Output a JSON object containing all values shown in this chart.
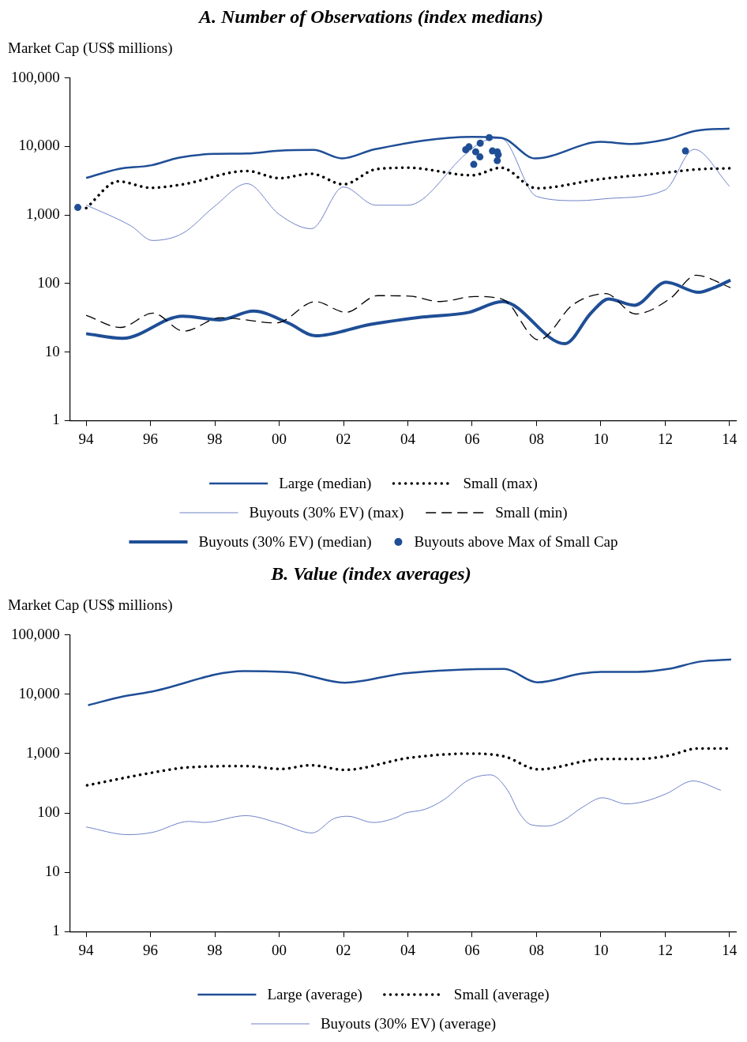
{
  "chart_data": [
    {
      "type": "line",
      "title": "A. Number of Observations (index medians)",
      "ylabel": "Market Cap (US$ millions)",
      "log": "y",
      "grid": false,
      "legend": "bottom",
      "xlim": [
        1993.5,
        2014.2
      ],
      "xticks": [
        {
          "value": 1994,
          "label": "94"
        },
        {
          "value": 1996,
          "label": "96"
        },
        {
          "value": 1998,
          "label": "98"
        },
        {
          "value": 2000,
          "label": "00"
        },
        {
          "value": 2002,
          "label": "02"
        },
        {
          "value": 2004,
          "label": "04"
        },
        {
          "value": 2006,
          "label": "06"
        },
        {
          "value": 2008,
          "label": "08"
        },
        {
          "value": 2010,
          "label": "10"
        },
        {
          "value": 2012,
          "label": "12"
        },
        {
          "value": 2014,
          "label": "14"
        }
      ],
      "ylim": [
        1,
        100000
      ],
      "yticks": [
        1,
        10,
        100,
        {
          "value": 1000,
          "label": "1,000"
        },
        {
          "value": 10000,
          "label": "10,000"
        },
        {
          "value": 100000,
          "label": "100,000"
        }
      ],
      "series": [
        {
          "name": "Large (median)",
          "color": "#1f4e96",
          "line_style": "solid",
          "x": [
            1994,
            1995,
            1996,
            1996.9,
            1998,
            1999,
            2000,
            2001.07,
            2001.95,
            2002.96,
            2006,
            2006.9,
            2007.96,
            2010,
            2010.96,
            2012,
            2012.97,
            2014
          ],
          "values": [
            3470,
            4700,
            5300,
            6900,
            7800,
            7900,
            8700,
            8900,
            6700,
            9100,
            13800,
            13400,
            6700,
            11700,
            10900,
            12600,
            17000,
            18300
          ]
        },
        {
          "name": "Small (max)",
          "color": "#000000",
          "line_style": "dotted",
          "x": [
            1994,
            1995,
            1996,
            1997,
            1999,
            2000,
            2001,
            2002,
            2003,
            2004,
            2006,
            2006.9,
            2008,
            2010,
            2012,
            2013,
            2014
          ],
          "values": [
            1260,
            3100,
            2500,
            2800,
            4400,
            3450,
            4000,
            2800,
            4650,
            4900,
            3800,
            4900,
            2460,
            3350,
            4150,
            4650,
            4800
          ]
        },
        {
          "name": "Buyouts (30% EV) (max)",
          "color": "#6f82c8",
          "line_style": "solid",
          "x": [
            1994,
            1995.4,
            1996.06,
            1997,
            1998,
            1999,
            2000,
            2001,
            2002,
            2003,
            2004,
            2005.8,
            2006.3,
            2006.9,
            2008,
            2009.3,
            2010.3,
            2012,
            2012.9,
            2014
          ],
          "values": [
            1400,
            690,
            425,
            540,
            1350,
            2870,
            1020,
            630,
            2570,
            1390,
            1390,
            7760,
            11700,
            13100,
            1870,
            1620,
            1750,
            2330,
            9100,
            2630
          ]
        },
        {
          "name": "Small (min)",
          "color": "#000000",
          "line_style": "dashed",
          "x": [
            1994,
            1995.07,
            1996.08,
            1997.04,
            1998.18,
            1999.92,
            2001.12,
            2002.08,
            2003.06,
            2004.06,
            2005,
            2006.07,
            2006.96,
            2008.07,
            2009.14,
            2010.15,
            2011.08,
            2012.15,
            2012.96,
            2014.03
          ],
          "values": [
            34.3,
            22.8,
            36.8,
            20.1,
            31.6,
            26.6,
            54.4,
            37.9,
            66.4,
            65.3,
            54.4,
            64.6,
            58.5,
            15,
            49.3,
            71.1,
            35.8,
            60,
            132,
            87
          ]
        },
        {
          "name": "Buyouts (30% EV) (median)",
          "color": "#1f4e96",
          "line_style": "solid",
          "x": [
            1994,
            1995.13,
            1997,
            1998.15,
            1999.2,
            2000.27,
            2001.13,
            2002.82,
            2004.46,
            2005.9,
            2006.94,
            2008.88,
            2009.7,
            2010.24,
            2011.04,
            2012.03,
            2013.05,
            2013.49,
            2014.03
          ],
          "values": [
            18.5,
            15.8,
            33.3,
            29.4,
            39.5,
            26.6,
            17.2,
            25.2,
            32.4,
            37.9,
            54.4,
            13.2,
            37.3,
            59.3,
            48,
            104,
            74.2,
            85.6,
            112
          ]
        },
        {
          "name": "Buyouts above Max of Small Cap",
          "type": "scatter",
          "marker": "circle",
          "color": "#1f4e96",
          "x": [
            1993.74,
            2005.8,
            2005.9,
            2006.11,
            2006.25,
            2006.24,
            2006.05,
            2006.53,
            2006.63,
            2006.78,
            2006.81,
            2006.78,
            2012.63
          ],
          "values": [
            1290,
            8980,
            9900,
            8380,
            11200,
            7060,
            5480,
            13500,
            8610,
            8380,
            7590,
            6220,
            8610
          ]
        }
      ]
    },
    {
      "type": "line",
      "title": "B. Value (index averages)",
      "ylabel": "Market Cap (US$ millions)",
      "log": "y",
      "grid": false,
      "legend": "bottom",
      "xlim": [
        1993.5,
        2014.2
      ],
      "xticks": [
        {
          "value": 1994,
          "label": "94"
        },
        {
          "value": 1996,
          "label": "96"
        },
        {
          "value": 1998,
          "label": "98"
        },
        {
          "value": 2000,
          "label": "00"
        },
        {
          "value": 2002,
          "label": "02"
        },
        {
          "value": 2004,
          "label": "04"
        },
        {
          "value": 2006,
          "label": "06"
        },
        {
          "value": 2008,
          "label": "08"
        },
        {
          "value": 2010,
          "label": "10"
        },
        {
          "value": 2012,
          "label": "12"
        },
        {
          "value": 2014,
          "label": "14"
        }
      ],
      "ylim": [
        1,
        100000
      ],
      "yticks": [
        1,
        10,
        100,
        {
          "value": 1000,
          "label": "1,000"
        },
        {
          "value": 10000,
          "label": "10,000"
        },
        {
          "value": 100000,
          "label": "100,000"
        }
      ],
      "series": [
        {
          "name": "Large (average)",
          "color": "#1f4e96",
          "line_style": "solid",
          "x": [
            1994.06,
            1995.13,
            1996,
            1998.91,
            2000.4,
            2002.03,
            2003.86,
            2007,
            2008.03,
            2009.41,
            2010.01,
            2011.15,
            2012.09,
            2013.09,
            2014.05
          ],
          "values": [
            6550,
            9180,
            11000,
            24700,
            23400,
            15700,
            22400,
            26700,
            15900,
            22400,
            23900,
            23900,
            26700,
            35700,
            38700
          ]
        },
        {
          "name": "Small (average)",
          "color": "#000000",
          "line_style": "dotted",
          "x": [
            1994.03,
            1996.04,
            1997.17,
            1998.98,
            2000.05,
            2000.98,
            2002.03,
            2004.06,
            2005.93,
            2007,
            2008.05,
            2010.08,
            2011.15,
            2012.09,
            2013.02,
            2014.05
          ],
          "values": [
            292,
            476,
            587,
            616,
            550,
            637,
            533,
            851,
            1000,
            895,
            543,
            813,
            813,
            922,
            1220,
            1220
          ]
        },
        {
          "name": "Buyouts (30% EV) (average)",
          "color": "#6f82c8",
          "line_style": "solid",
          "x": [
            1994,
            1995.3,
            1996.06,
            1997.2,
            1997.66,
            1998.96,
            2000,
            2001.02,
            2001.7,
            2002.12,
            2002.93,
            2003.62,
            2003.91,
            2004.53,
            2005.14,
            2005.88,
            2006.57,
            2007.1,
            2007.47,
            2007.84,
            2008.33,
            2008.82,
            2009.44,
            2010.05,
            2010.79,
            2011.33,
            2012.02,
            2012.87,
            2013.73
          ],
          "values": [
            58,
            43,
            47,
            72,
            69,
            90,
            67,
            46,
            80,
            88,
            69,
            83,
            99,
            115,
            170,
            357,
            438,
            242,
            99,
            63,
            60,
            74,
            126,
            180,
            142,
            155,
            209,
            346,
            241
          ]
        }
      ]
    }
  ]
}
